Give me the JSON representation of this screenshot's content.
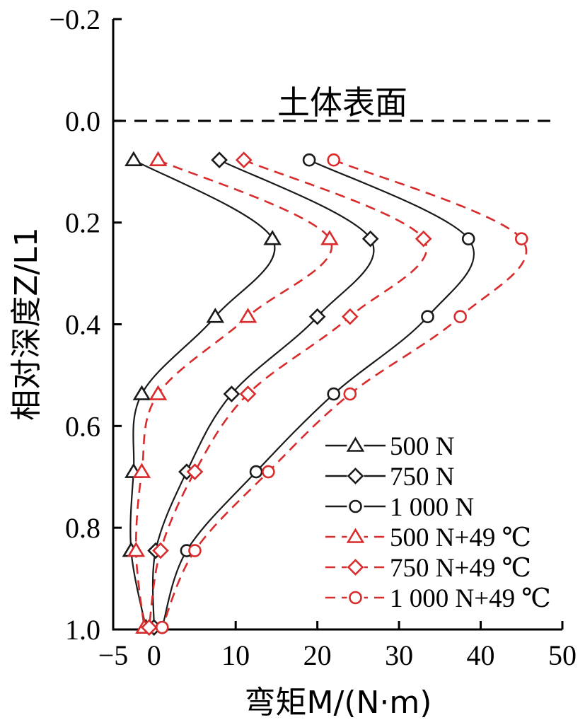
{
  "chart_data": {
    "type": "line",
    "xlabel": "弯矩M/(N·m)",
    "ylabel": "相对深度Z/L1",
    "xlim": [
      -5,
      50
    ],
    "ylim": [
      -0.2,
      1.0
    ],
    "y_inverted": true,
    "xticks": [
      -5,
      0,
      10,
      20,
      30,
      40,
      50
    ],
    "yticks": [
      "−0.2",
      "0.0",
      "0.2",
      "0.4",
      "0.6",
      "0.8",
      "1.0"
    ],
    "ytick_values": [
      -0.2,
      0.0,
      0.2,
      0.4,
      0.6,
      0.8,
      1.0
    ],
    "grid": false,
    "legend_position": "bottom-right",
    "annotation": {
      "text": "土体表面",
      "at_depth": 0.0
    },
    "series": [
      {
        "name": "500 N",
        "color": "#1a1a1a",
        "marker": "triangle",
        "dashed": false,
        "x": [
          -2.5,
          14.5,
          7.5,
          -1.5,
          -2.5,
          -2.8,
          -1.0
        ],
        "y": [
          0.077,
          0.232,
          0.385,
          0.537,
          0.69,
          0.845,
          0.996
        ]
      },
      {
        "name": "750 N",
        "color": "#1a1a1a",
        "marker": "diamond",
        "dashed": false,
        "x": [
          8.0,
          26.5,
          20.0,
          9.5,
          4.0,
          0.2,
          0.0
        ],
        "y": [
          0.077,
          0.232,
          0.385,
          0.537,
          0.69,
          0.845,
          0.996
        ]
      },
      {
        "name": "1 000 N",
        "color": "#1a1a1a",
        "marker": "circle",
        "dashed": false,
        "x": [
          19.0,
          38.5,
          33.5,
          22.0,
          12.5,
          4.0,
          1.0
        ],
        "y": [
          0.077,
          0.232,
          0.385,
          0.537,
          0.69,
          0.845,
          0.996
        ]
      },
      {
        "name": "500 N+49 ℃",
        "color": "#d92b2b",
        "marker": "triangle",
        "dashed": true,
        "x": [
          0.5,
          21.5,
          11.5,
          0.5,
          -1.5,
          -2.2,
          -1.2
        ],
        "y": [
          0.077,
          0.232,
          0.385,
          0.537,
          0.69,
          0.845,
          0.996
        ]
      },
      {
        "name": "750 N+49 ℃",
        "color": "#d92b2b",
        "marker": "diamond",
        "dashed": true,
        "x": [
          11.0,
          33.0,
          24.0,
          11.5,
          5.0,
          0.8,
          -0.6
        ],
        "y": [
          0.077,
          0.232,
          0.385,
          0.537,
          0.69,
          0.845,
          0.996
        ]
      },
      {
        "name": "1 000 N+49 ℃",
        "color": "#d92b2b",
        "marker": "circle",
        "dashed": true,
        "x": [
          22.0,
          45.0,
          37.5,
          24.0,
          14.0,
          5.0,
          1.0
        ],
        "y": [
          0.077,
          0.232,
          0.385,
          0.537,
          0.69,
          0.845,
          0.996
        ]
      }
    ]
  }
}
